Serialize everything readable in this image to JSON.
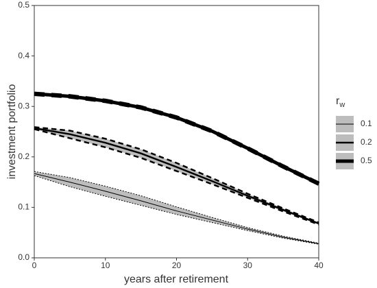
{
  "chart_data": {
    "type": "line",
    "x_label": "years after retirement",
    "y_label": "investment portfolio",
    "legend_title": "r",
    "legend_title_sub": "w",
    "legend_position": "right",
    "x": [
      0,
      5,
      10,
      15,
      20,
      25,
      30,
      35,
      40
    ],
    "xlim": [
      0,
      40
    ],
    "xticks": [
      0,
      10,
      20,
      30,
      40
    ],
    "ylim": [
      0,
      0.5
    ],
    "yticks": [
      {
        "value": 0,
        "label": "0.0"
      },
      0.1,
      0.2,
      0.3,
      0.4,
      0.5
    ],
    "band_color": "#bdbdbd",
    "series": [
      {
        "name": "0.1",
        "color": "#000000",
        "line_width": 1,
        "values": [
          0.167,
          0.15,
          0.132,
          0.113,
          0.093,
          0.075,
          0.057,
          0.041,
          0.028
        ],
        "lower": [
          0.163,
          0.141,
          0.122,
          0.104,
          0.086,
          0.07,
          0.054,
          0.039,
          0.027
        ],
        "upper": [
          0.171,
          0.159,
          0.142,
          0.123,
          0.101,
          0.08,
          0.06,
          0.043,
          0.029
        ]
      },
      {
        "name": "0.2",
        "color": "#000000",
        "line_width": 2.5,
        "values": [
          0.257,
          0.245,
          0.228,
          0.207,
          0.18,
          0.152,
          0.123,
          0.095,
          0.068
        ],
        "lower": [
          0.255,
          0.237,
          0.219,
          0.198,
          0.172,
          0.146,
          0.119,
          0.092,
          0.066
        ],
        "upper": [
          0.259,
          0.252,
          0.236,
          0.215,
          0.188,
          0.158,
          0.127,
          0.098,
          0.07
        ]
      },
      {
        "name": "0.5",
        "color": "#000000",
        "line_width": 5,
        "values": [
          0.325,
          0.32,
          0.311,
          0.298,
          0.278,
          0.251,
          0.217,
          0.181,
          0.147
        ],
        "lower": [
          0.324,
          0.319,
          0.31,
          0.297,
          0.277,
          0.25,
          0.216,
          0.18,
          0.146
        ],
        "upper": [
          0.326,
          0.321,
          0.312,
          0.299,
          0.279,
          0.252,
          0.218,
          0.182,
          0.148
        ]
      }
    ]
  }
}
